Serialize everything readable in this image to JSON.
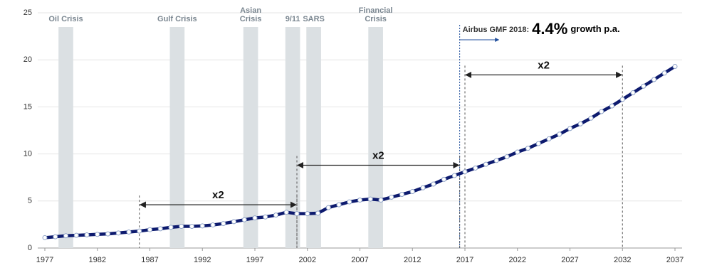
{
  "chart_data": {
    "type": "line",
    "x": [
      1977,
      1978,
      1979,
      1980,
      1981,
      1982,
      1983,
      1984,
      1985,
      1986,
      1987,
      1988,
      1989,
      1990,
      1991,
      1992,
      1993,
      1994,
      1995,
      1996,
      1997,
      1998,
      1999,
      2000,
      2001,
      2002,
      2003,
      2004,
      2005,
      2006,
      2007,
      2008,
      2009,
      2010,
      2011,
      2012,
      2013,
      2014,
      2015,
      2016,
      2017,
      2018,
      2019,
      2020,
      2021,
      2022,
      2023,
      2024,
      2025,
      2026,
      2027,
      2028,
      2029,
      2030,
      2031,
      2032,
      2033,
      2034,
      2035,
      2036,
      2037
    ],
    "series": [
      {
        "color": "#0d1a6e",
        "values": [
          1.1,
          1.2,
          1.3,
          1.35,
          1.4,
          1.45,
          1.5,
          1.6,
          1.7,
          1.8,
          1.95,
          2.05,
          2.2,
          2.3,
          2.3,
          2.35,
          2.45,
          2.6,
          2.8,
          3.0,
          3.2,
          3.3,
          3.5,
          3.8,
          3.65,
          3.65,
          3.7,
          4.3,
          4.6,
          4.9,
          5.1,
          5.2,
          5.1,
          5.4,
          5.7,
          6.0,
          6.4,
          6.8,
          7.3,
          7.7,
          8.1,
          8.5,
          8.9,
          9.3,
          9.7,
          10.2,
          10.6,
          11.1,
          11.6,
          12.1,
          12.7,
          13.2,
          13.8,
          14.5,
          15.1,
          15.8,
          16.5,
          17.2,
          17.9,
          18.6,
          19.3
        ]
      }
    ],
    "xlim": [
      1977,
      2037
    ],
    "xticks": [
      1977,
      1982,
      1987,
      1992,
      1997,
      2002,
      2007,
      2012,
      2017,
      2022,
      2027,
      2032,
      2037
    ],
    "ylim": [
      0,
      25
    ],
    "yticks": [
      0,
      5,
      10,
      15,
      20,
      25
    ],
    "grid": true,
    "bands": [
      {
        "label": [
          "Oil Crisis"
        ],
        "start": 1978.3,
        "end": 1979.7
      },
      {
        "label": [
          "Gulf Crisis"
        ],
        "start": 1988.9,
        "end": 1990.3
      },
      {
        "label": [
          "Asian",
          "Crisis"
        ],
        "start": 1995.9,
        "end": 1997.3
      },
      {
        "label": [
          "9/11"
        ],
        "start": 1999.9,
        "end": 2001.3
      },
      {
        "label": [
          "SARS"
        ],
        "start": 2001.9,
        "end": 2003.3
      },
      {
        "label": [
          "Financial",
          "Crisis"
        ],
        "start": 2007.8,
        "end": 2009.2
      }
    ],
    "doublings": [
      {
        "label": "x2",
        "from": 1986,
        "to": 2001,
        "y": 4.6
      },
      {
        "label": "x2",
        "from": 2001,
        "to": 2016.5,
        "y": 8.8
      },
      {
        "label": "x2",
        "from": 2017,
        "to": 2032,
        "y": 18.4
      }
    ],
    "forecast": {
      "x": 2016.5,
      "prefix": "Airbus GMF 2018:",
      "rate": "4.4%",
      "suffix": "growth p.a."
    }
  }
}
